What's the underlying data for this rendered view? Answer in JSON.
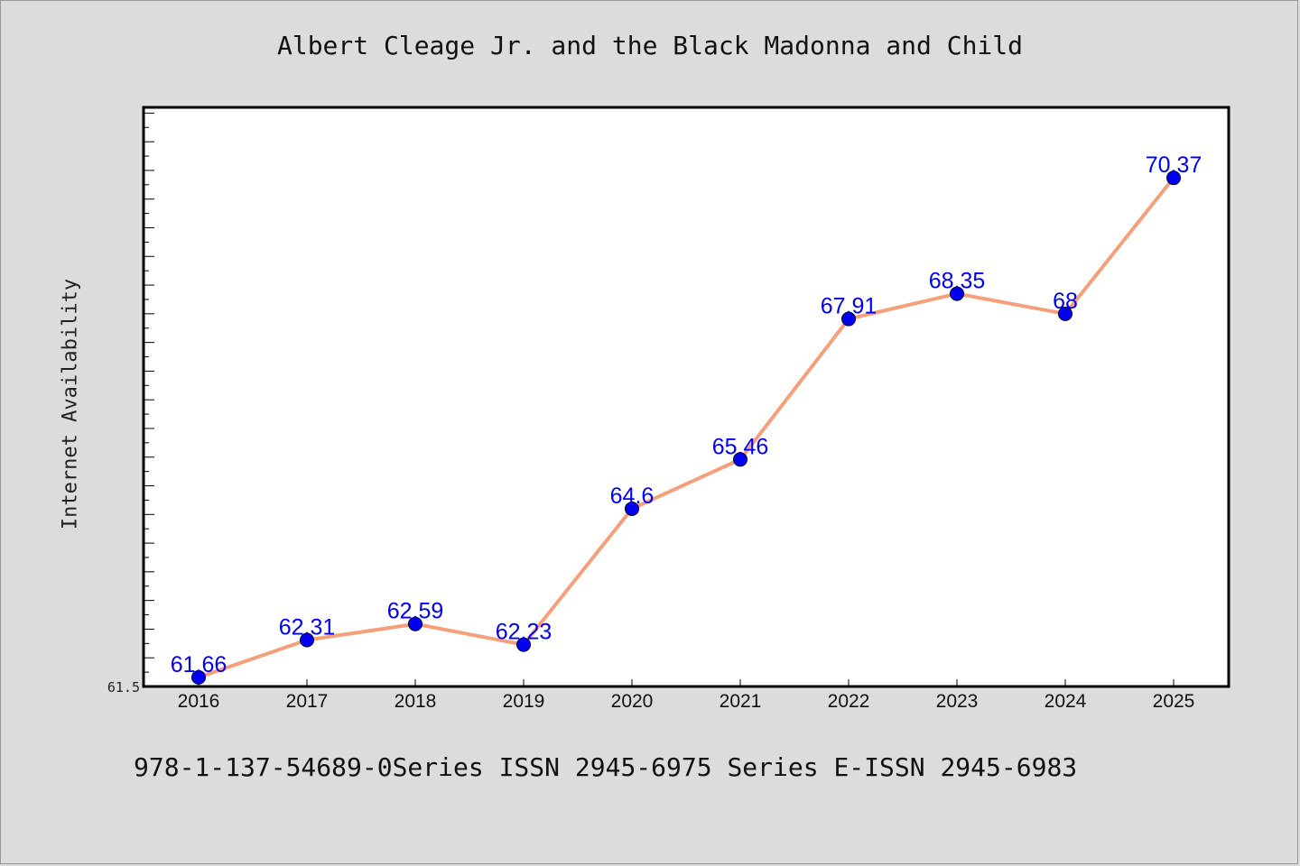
{
  "chart_data": {
    "type": "line",
    "title": "Albert Cleage Jr. and the Black Madonna and Child",
    "xlabel": "",
    "ylabel": "Internet Availability",
    "categories": [
      "2016",
      "2017",
      "2018",
      "2019",
      "2020",
      "2021",
      "2022",
      "2023",
      "2024",
      "2025"
    ],
    "series": [
      {
        "values": [
          61.66,
          62.31,
          62.59,
          62.23,
          64.6,
          65.46,
          67.91,
          68.35,
          68,
          70.37
        ],
        "labels": [
          "61.66",
          "62.31",
          "62.59",
          "62.23",
          "64.6",
          "65.46",
          "67.91",
          "68.35",
          "68",
          "70.37"
        ]
      }
    ],
    "ylim": [
      61.5,
      71.6
    ],
    "y_tick_labels": [
      "61.5"
    ],
    "grid": false,
    "line_color": "#f5a07a",
    "marker_color": "#0000ee",
    "label_color": "#0000ee",
    "background_color": "#dcdcdc",
    "plot_background": "#ffffff"
  },
  "footer": {
    "text": "978-1-137-54689-0Series ISSN 2945-6975 Series E-ISSN 2945-6983"
  }
}
